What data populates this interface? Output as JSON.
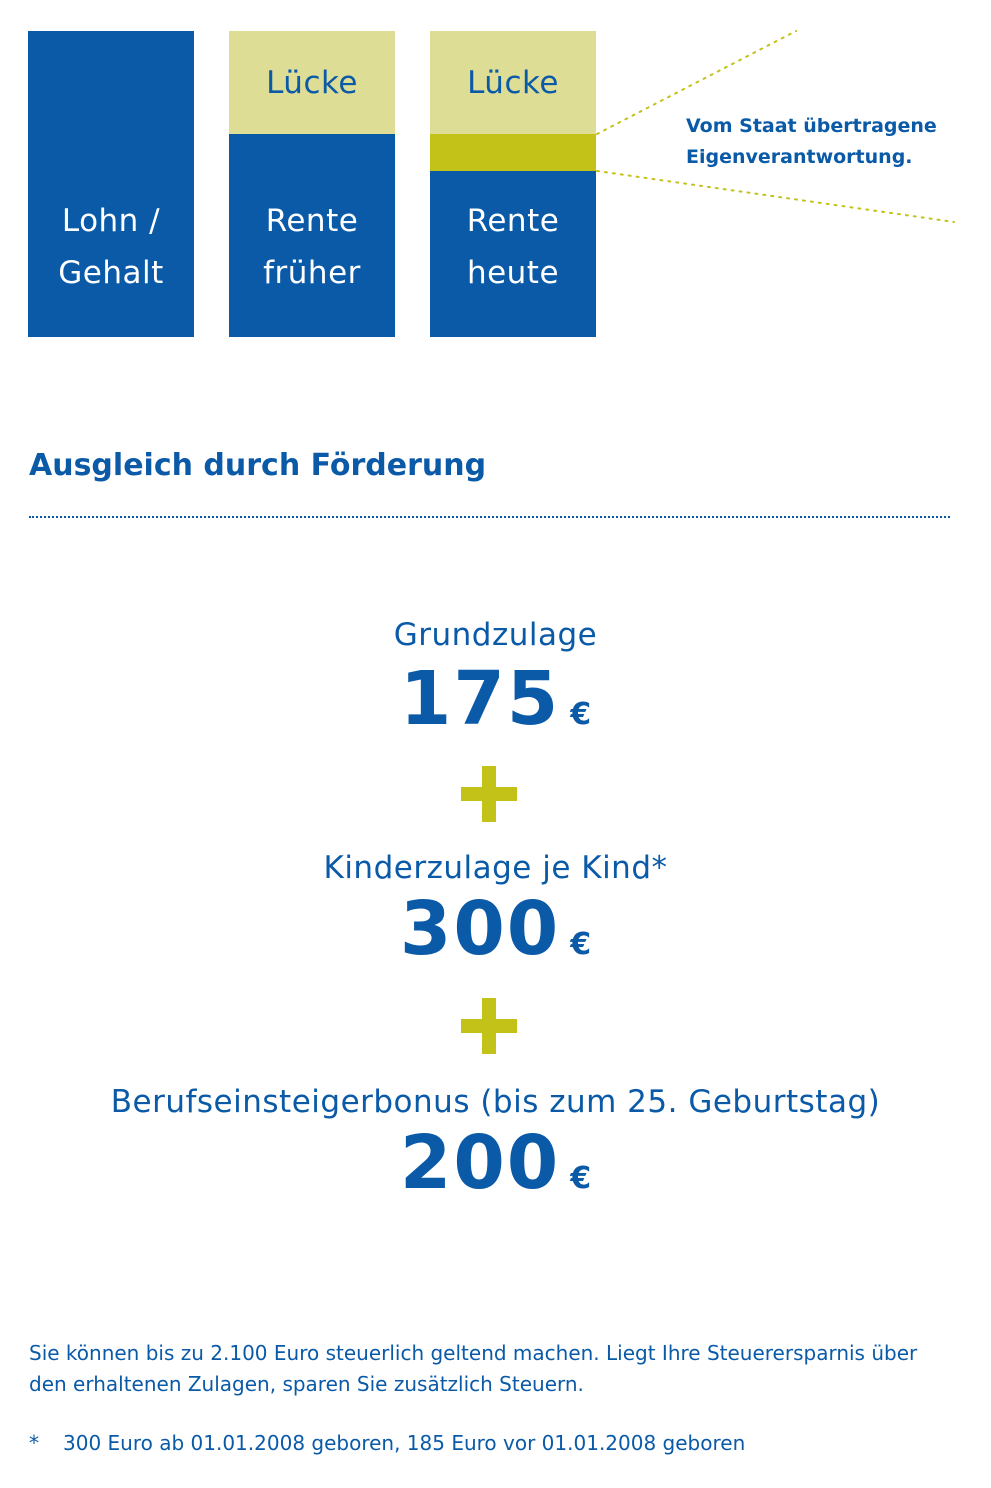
{
  "diagram": {
    "bars": [
      {
        "lines": [
          "Lohn /",
          "Gehalt"
        ],
        "gap_label": null
      },
      {
        "lines": [
          "Rente",
          "früher"
        ],
        "gap_label": "Lücke"
      },
      {
        "lines": [
          "Rente",
          "heute"
        ],
        "gap_label": "Lücke"
      }
    ],
    "callout": [
      "Vom Staat übertragene",
      "Eigenverantwortung."
    ],
    "colors": {
      "blue": "#0a5aa8",
      "gap": "#dedd95",
      "own_responsibility": "#c3c219"
    }
  },
  "section": {
    "heading": "Ausgleich durch Förderung",
    "items": [
      {
        "label": "Grundzulage",
        "amount": "175",
        "currency": "€"
      },
      {
        "label": "Kinderzulage je Kind*",
        "amount": "300",
        "currency": "€"
      },
      {
        "label": "Berufseinsteigerbonus (bis zum 25. Geburtstag)",
        "amount": "200",
        "currency": "€"
      }
    ]
  },
  "note": "Sie können bis zu 2.100 Euro steuerlich geltend machen. Liegt Ihre Steuerersparnis über den erhaltenen Zulagen, sparen Sie zusätzlich Steuern.",
  "footnote": {
    "marker": "*",
    "text": "300 Euro ab 01.01.2008 geboren, 185 Euro vor 01.01.2008 geboren"
  }
}
